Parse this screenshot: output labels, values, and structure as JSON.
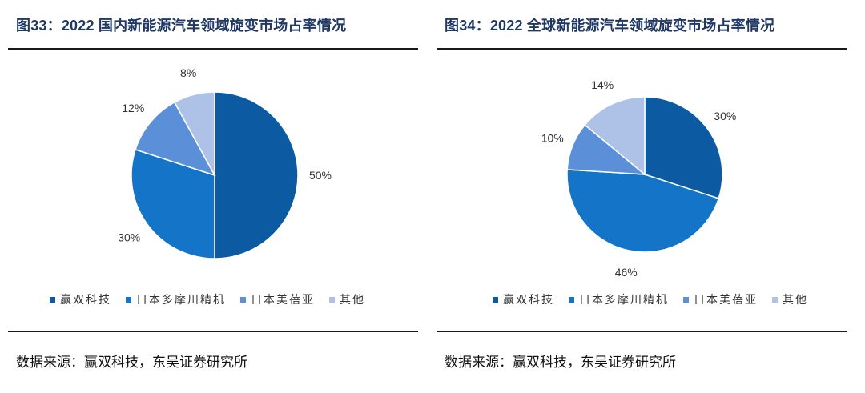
{
  "source_label": "数据来源：赢双科技，东吴证券研究所",
  "legend_colors": [
    "#0b5aa2",
    "#1474c7",
    "#5b8fd8",
    "#aec2e8"
  ],
  "chart_data": [
    {
      "type": "pie",
      "title": "图33：2022 国内新能源汽车领域旋变市场占率情况",
      "categories": [
        "赢双科技",
        "日本多摩川精机",
        "日本美蓓亚",
        "其他"
      ],
      "values": [
        50,
        30,
        12,
        8
      ],
      "labels": [
        "50%",
        "30%",
        "12%",
        "8%"
      ],
      "legend": "bottom"
    },
    {
      "type": "pie",
      "title": "图34：2022 全球新能源汽车领域旋变市场占率情况",
      "categories": [
        "赢双科技",
        "日本多摩川精机",
        "日本美蓓亚",
        "其他"
      ],
      "values": [
        30,
        46,
        10,
        14
      ],
      "labels": [
        "30%",
        "46%",
        "10%",
        "14%"
      ],
      "legend": "bottom"
    }
  ]
}
